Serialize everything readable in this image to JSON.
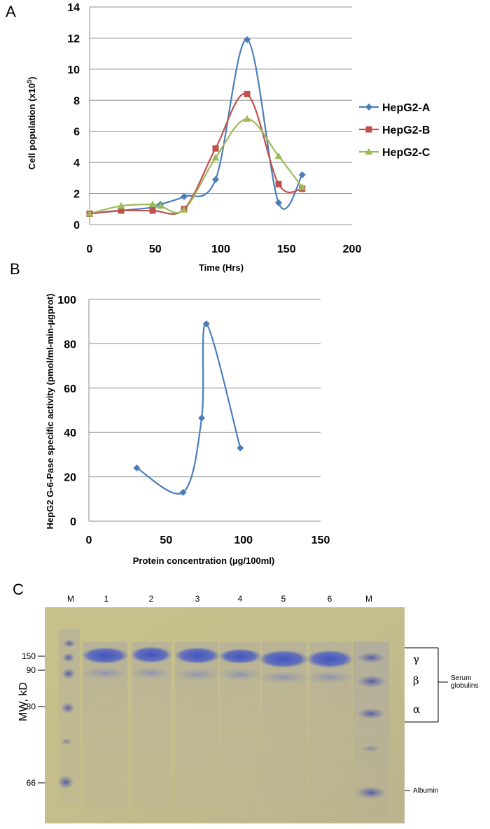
{
  "panels": {
    "a": "A",
    "b": "B",
    "c": "C"
  },
  "chart_data": [
    {
      "type": "line",
      "panel": "A",
      "xlabel": "Time (Hrs)",
      "ylabel_main": "Cell population (x10",
      "ylabel_sup": "5",
      "ylabel_end": ")",
      "xlim": [
        0,
        200
      ],
      "ylim": [
        0,
        14
      ],
      "xticks": [
        0,
        50,
        100,
        150,
        200
      ],
      "yticks": [
        0,
        2,
        4,
        6,
        8,
        10,
        12,
        14
      ],
      "grid": "horizontal",
      "legend_position": "right",
      "series": [
        {
          "name": "HepG2-A",
          "color": "#4a7ebb",
          "marker": "diamond",
          "x": [
            0,
            24,
            48,
            54,
            72,
            96,
            120,
            144,
            162
          ],
          "y": [
            0.7,
            0.9,
            1.1,
            1.3,
            1.8,
            2.9,
            11.9,
            1.4,
            3.2
          ]
        },
        {
          "name": "HepG2-B",
          "color": "#c0504d",
          "marker": "square",
          "x": [
            0,
            24,
            48,
            72,
            96,
            120,
            144,
            162
          ],
          "y": [
            0.7,
            0.9,
            0.9,
            1.0,
            4.9,
            8.4,
            2.6,
            2.3
          ]
        },
        {
          "name": "HepG2-C",
          "color": "#9bbb59",
          "marker": "triangle",
          "x": [
            0,
            24,
            48,
            54,
            72,
            96,
            120,
            144,
            162
          ],
          "y": [
            0.7,
            1.2,
            1.3,
            1.2,
            0.95,
            4.3,
            6.8,
            4.4,
            2.4
          ]
        }
      ]
    },
    {
      "type": "scatter",
      "panel": "B",
      "xlabel": "Protein concentration (µg/100ml)",
      "ylabel": "HepG2 G-6-Pase specific activity (pmol/ml-min-µgprot)",
      "xlim": [
        0,
        150
      ],
      "ylim": [
        0,
        100
      ],
      "xticks": [
        0,
        50,
        100,
        150
      ],
      "yticks": [
        0,
        20,
        40,
        60,
        80,
        100
      ],
      "grid": "horizontal",
      "series": [
        {
          "color": "#4a7ebb",
          "marker": "diamond",
          "connect_order": "by_x",
          "x": [
            31,
            61,
            73,
            76,
            98
          ],
          "y": [
            24,
            13,
            46.5,
            89,
            33
          ]
        }
      ]
    }
  ],
  "gel": {
    "lane_labels": [
      "M",
      "1",
      "2",
      "3",
      "4",
      "5",
      "6",
      "M"
    ],
    "mw_axis_label": "MW, kD",
    "mw_markers": [
      "150",
      "90",
      "80",
      "66"
    ],
    "band_labels": {
      "gamma": "γ",
      "beta": "β",
      "alpha": "α"
    },
    "globulin_label_1": "Serum",
    "globulin_label_2": "globulins",
    "albumin_label": "Albumin"
  }
}
